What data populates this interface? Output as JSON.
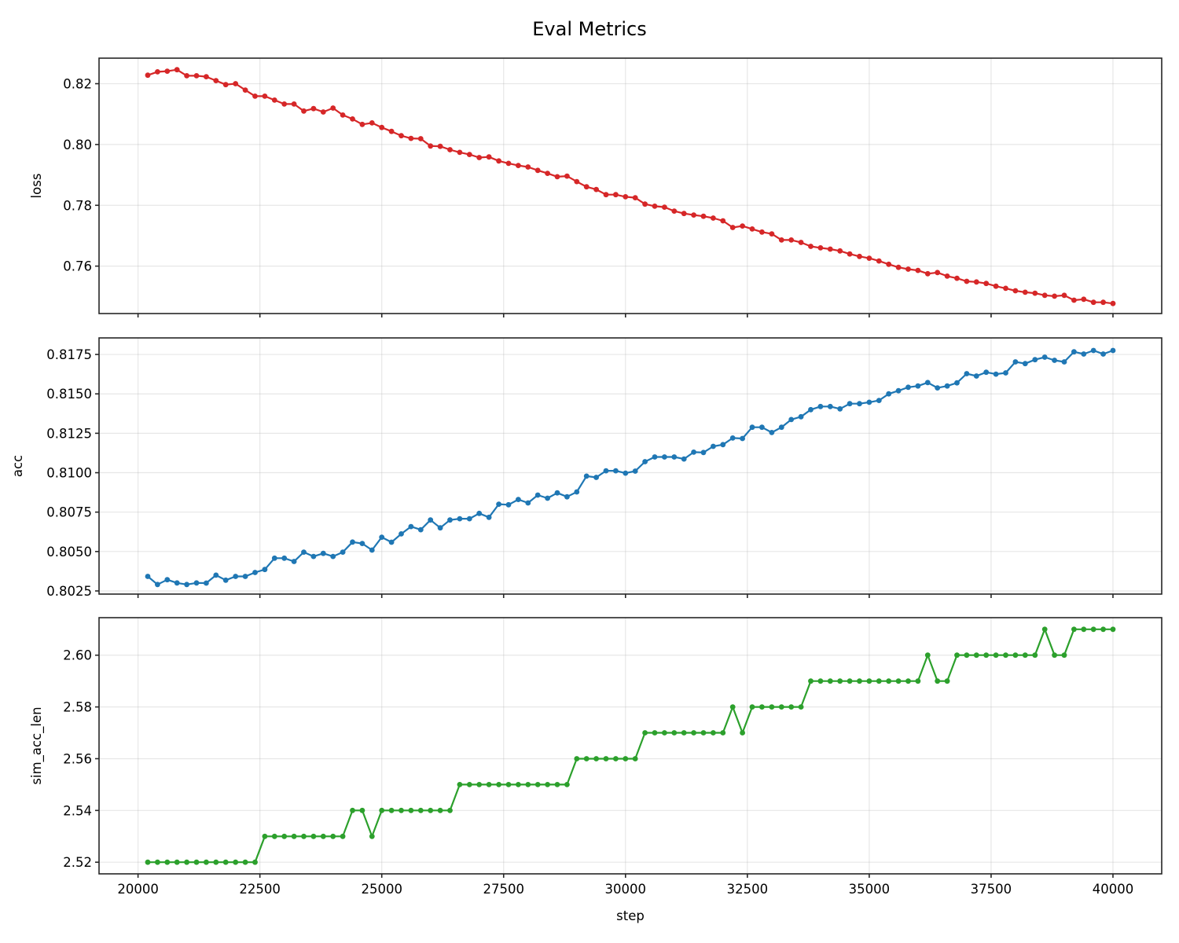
{
  "figure": {
    "title": "Eval Metrics",
    "xlabel": "step"
  },
  "chart_data": [
    {
      "type": "line",
      "title": "Eval Metrics",
      "xlabel": "",
      "ylabel": "loss",
      "color": "#d62728",
      "marker": "circle",
      "grid": true,
      "xlim": [
        19200,
        41000
      ],
      "ylim": [
        0.7444,
        0.8284
      ],
      "xticks": [
        20000,
        22500,
        25000,
        27500,
        30000,
        32500,
        35000,
        37500,
        40000
      ],
      "xtick_labels_visible": false,
      "yticks": [
        0.76,
        0.78,
        0.8,
        0.82
      ],
      "ytick_labels": [
        "0.76",
        "0.78",
        "0.80",
        "0.82"
      ],
      "x": [
        20200,
        20400,
        20600,
        20800,
        21000,
        21200,
        21400,
        21600,
        21800,
        22000,
        22200,
        22400,
        22600,
        22800,
        23000,
        23200,
        23400,
        23600,
        23800,
        24000,
        24200,
        24400,
        24600,
        24800,
        25000,
        25200,
        25400,
        25600,
        25800,
        26000,
        26200,
        26400,
        26600,
        26800,
        27000,
        27200,
        27400,
        27600,
        27800,
        28000,
        28200,
        28400,
        28600,
        28800,
        29000,
        29200,
        29400,
        29600,
        29800,
        30000,
        30200,
        30400,
        30600,
        30800,
        31000,
        31200,
        31400,
        31600,
        31800,
        32000,
        32200,
        32400,
        32600,
        32800,
        33000,
        33200,
        33400,
        33600,
        33800,
        34000,
        34200,
        34400,
        34600,
        34800,
        35000,
        35200,
        35400,
        35600,
        35800,
        36000,
        36200,
        36400,
        36600,
        36800,
        37000,
        37200,
        37400,
        37600,
        37800,
        38000,
        38200,
        38400,
        38600,
        38800,
        39000,
        39200,
        39400,
        39600,
        39800,
        40000
      ],
      "values": [
        0.8228,
        0.8239,
        0.8241,
        0.8246,
        0.8226,
        0.8226,
        0.8223,
        0.821,
        0.8197,
        0.82,
        0.8179,
        0.8159,
        0.8159,
        0.8146,
        0.8133,
        0.8133,
        0.811,
        0.8118,
        0.8107,
        0.812,
        0.8097,
        0.8084,
        0.8066,
        0.8071,
        0.8056,
        0.8043,
        0.8029,
        0.802,
        0.8019,
        0.7995,
        0.7994,
        0.7983,
        0.7974,
        0.7967,
        0.7957,
        0.7959,
        0.7946,
        0.7938,
        0.7931,
        0.7926,
        0.7915,
        0.7905,
        0.7894,
        0.7896,
        0.7878,
        0.7861,
        0.7852,
        0.7835,
        0.7835,
        0.7828,
        0.7825,
        0.7804,
        0.7797,
        0.7794,
        0.7781,
        0.7773,
        0.7768,
        0.7764,
        0.7758,
        0.7749,
        0.7727,
        0.7732,
        0.7722,
        0.7712,
        0.7706,
        0.7686,
        0.7686,
        0.7678,
        0.7665,
        0.766,
        0.7656,
        0.765,
        0.764,
        0.7632,
        0.7626,
        0.7617,
        0.7606,
        0.7596,
        0.759,
        0.7586,
        0.7575,
        0.7579,
        0.7567,
        0.756,
        0.755,
        0.7548,
        0.7543,
        0.7534,
        0.7527,
        0.7519,
        0.7514,
        0.7511,
        0.7504,
        0.7501,
        0.7504,
        0.7488,
        0.7491,
        0.7481,
        0.7481,
        0.7477
      ]
    },
    {
      "type": "line",
      "xlabel": "",
      "ylabel": "acc",
      "color": "#1f77b4",
      "marker": "circle",
      "grid": true,
      "xlim": [
        19200,
        41000
      ],
      "ylim": [
        0.8023,
        0.81855
      ],
      "xticks": [
        20000,
        22500,
        25000,
        27500,
        30000,
        32500,
        35000,
        37500,
        40000
      ],
      "xtick_labels_visible": false,
      "yticks": [
        0.8025,
        0.805,
        0.8075,
        0.81,
        0.8125,
        0.815,
        0.8175
      ],
      "ytick_labels": [
        "0.8025",
        "0.8050",
        "0.8075",
        "0.8100",
        "0.8125",
        "0.8150",
        "0.8175"
      ],
      "x": [
        20200,
        20400,
        20600,
        20800,
        21000,
        21200,
        21400,
        21600,
        21800,
        22000,
        22200,
        22400,
        22600,
        22800,
        23000,
        23200,
        23400,
        23600,
        23800,
        24000,
        24200,
        24400,
        24600,
        24800,
        25000,
        25200,
        25400,
        25600,
        25800,
        26000,
        26200,
        26400,
        26600,
        26800,
        27000,
        27200,
        27400,
        27600,
        27800,
        28000,
        28200,
        28400,
        28600,
        28800,
        29000,
        29200,
        29400,
        29600,
        29800,
        30000,
        30200,
        30400,
        30600,
        30800,
        31000,
        31200,
        31400,
        31600,
        31800,
        32000,
        32200,
        32400,
        32600,
        32800,
        33000,
        33200,
        33400,
        33600,
        33800,
        34000,
        34200,
        34400,
        34600,
        34800,
        35000,
        35200,
        35400,
        35600,
        35800,
        36000,
        36200,
        36400,
        36600,
        36800,
        37000,
        37200,
        37400,
        37600,
        37800,
        38000,
        38200,
        38400,
        38600,
        38800,
        39000,
        39200,
        39400,
        39600,
        39800,
        40000
      ],
      "values": [
        0.80342,
        0.80291,
        0.80321,
        0.80301,
        0.80291,
        0.80301,
        0.803,
        0.8035,
        0.80318,
        0.80342,
        0.80342,
        0.80367,
        0.80386,
        0.80458,
        0.80458,
        0.80437,
        0.80496,
        0.80469,
        0.80488,
        0.80469,
        0.80496,
        0.8056,
        0.80551,
        0.80509,
        0.80591,
        0.80559,
        0.80612,
        0.80658,
        0.80638,
        0.807,
        0.8065,
        0.807,
        0.80708,
        0.80708,
        0.80742,
        0.80717,
        0.808,
        0.80797,
        0.8083,
        0.80808,
        0.80858,
        0.80838,
        0.80872,
        0.80847,
        0.80878,
        0.80978,
        0.8097,
        0.81012,
        0.81012,
        0.80997,
        0.8101,
        0.8107,
        0.811,
        0.811,
        0.811,
        0.81087,
        0.8113,
        0.81128,
        0.81167,
        0.81178,
        0.8122,
        0.81217,
        0.81288,
        0.81288,
        0.81255,
        0.81288,
        0.81337,
        0.81355,
        0.814,
        0.8142,
        0.8142,
        0.81405,
        0.81438,
        0.81438,
        0.81447,
        0.81458,
        0.815,
        0.8152,
        0.81542,
        0.8155,
        0.81572,
        0.81538,
        0.8155,
        0.8157,
        0.81628,
        0.81613,
        0.81637,
        0.81625,
        0.81633,
        0.81703,
        0.81692,
        0.81717,
        0.81733,
        0.81713,
        0.81703,
        0.81767,
        0.81753,
        0.81775,
        0.81753,
        0.81775
      ]
    },
    {
      "type": "line",
      "xlabel": "step",
      "ylabel": "sim_acc_len",
      "color": "#2ca02c",
      "marker": "circle",
      "grid": true,
      "xlim": [
        19200,
        41000
      ],
      "ylim": [
        2.5155,
        2.6145
      ],
      "xticks": [
        20000,
        22500,
        25000,
        27500,
        30000,
        32500,
        35000,
        37500,
        40000
      ],
      "xtick_labels": [
        "20000",
        "22500",
        "25000",
        "27500",
        "30000",
        "32500",
        "35000",
        "37500",
        "40000"
      ],
      "xtick_labels_visible": true,
      "yticks": [
        2.52,
        2.54,
        2.56,
        2.58,
        2.6
      ],
      "ytick_labels": [
        "2.52",
        "2.54",
        "2.56",
        "2.58",
        "2.60"
      ],
      "x": [
        20200,
        20400,
        20600,
        20800,
        21000,
        21200,
        21400,
        21600,
        21800,
        22000,
        22200,
        22400,
        22600,
        22800,
        23000,
        23200,
        23400,
        23600,
        23800,
        24000,
        24200,
        24400,
        24600,
        24800,
        25000,
        25200,
        25400,
        25600,
        25800,
        26000,
        26200,
        26400,
        26600,
        26800,
        27000,
        27200,
        27400,
        27600,
        27800,
        28000,
        28200,
        28400,
        28600,
        28800,
        29000,
        29200,
        29400,
        29600,
        29800,
        30000,
        30200,
        30400,
        30600,
        30800,
        31000,
        31200,
        31400,
        31600,
        31800,
        32000,
        32200,
        32400,
        32600,
        32800,
        33000,
        33200,
        33400,
        33600,
        33800,
        34000,
        34200,
        34400,
        34600,
        34800,
        35000,
        35200,
        35400,
        35600,
        35800,
        36000,
        36200,
        36400,
        36600,
        36800,
        37000,
        37200,
        37400,
        37600,
        37800,
        38000,
        38200,
        38400,
        38600,
        38800,
        39000,
        39200,
        39400,
        39600,
        39800,
        40000
      ],
      "values": [
        2.52,
        2.52,
        2.52,
        2.52,
        2.52,
        2.52,
        2.52,
        2.52,
        2.52,
        2.52,
        2.52,
        2.52,
        2.53,
        2.53,
        2.53,
        2.53,
        2.53,
        2.53,
        2.53,
        2.53,
        2.53,
        2.54,
        2.54,
        2.53,
        2.54,
        2.54,
        2.54,
        2.54,
        2.54,
        2.54,
        2.54,
        2.54,
        2.55,
        2.55,
        2.55,
        2.55,
        2.55,
        2.55,
        2.55,
        2.55,
        2.55,
        2.55,
        2.55,
        2.55,
        2.56,
        2.56,
        2.56,
        2.56,
        2.56,
        2.56,
        2.56,
        2.57,
        2.57,
        2.57,
        2.57,
        2.57,
        2.57,
        2.57,
        2.57,
        2.57,
        2.58,
        2.57,
        2.58,
        2.58,
        2.58,
        2.58,
        2.58,
        2.58,
        2.59,
        2.59,
        2.59,
        2.59,
        2.59,
        2.59,
        2.59,
        2.59,
        2.59,
        2.59,
        2.59,
        2.59,
        2.6,
        2.59,
        2.59,
        2.6,
        2.6,
        2.6,
        2.6,
        2.6,
        2.6,
        2.6,
        2.6,
        2.6,
        2.61,
        2.6,
        2.6,
        2.61,
        2.61,
        2.61,
        2.61,
        2.61
      ]
    }
  ]
}
